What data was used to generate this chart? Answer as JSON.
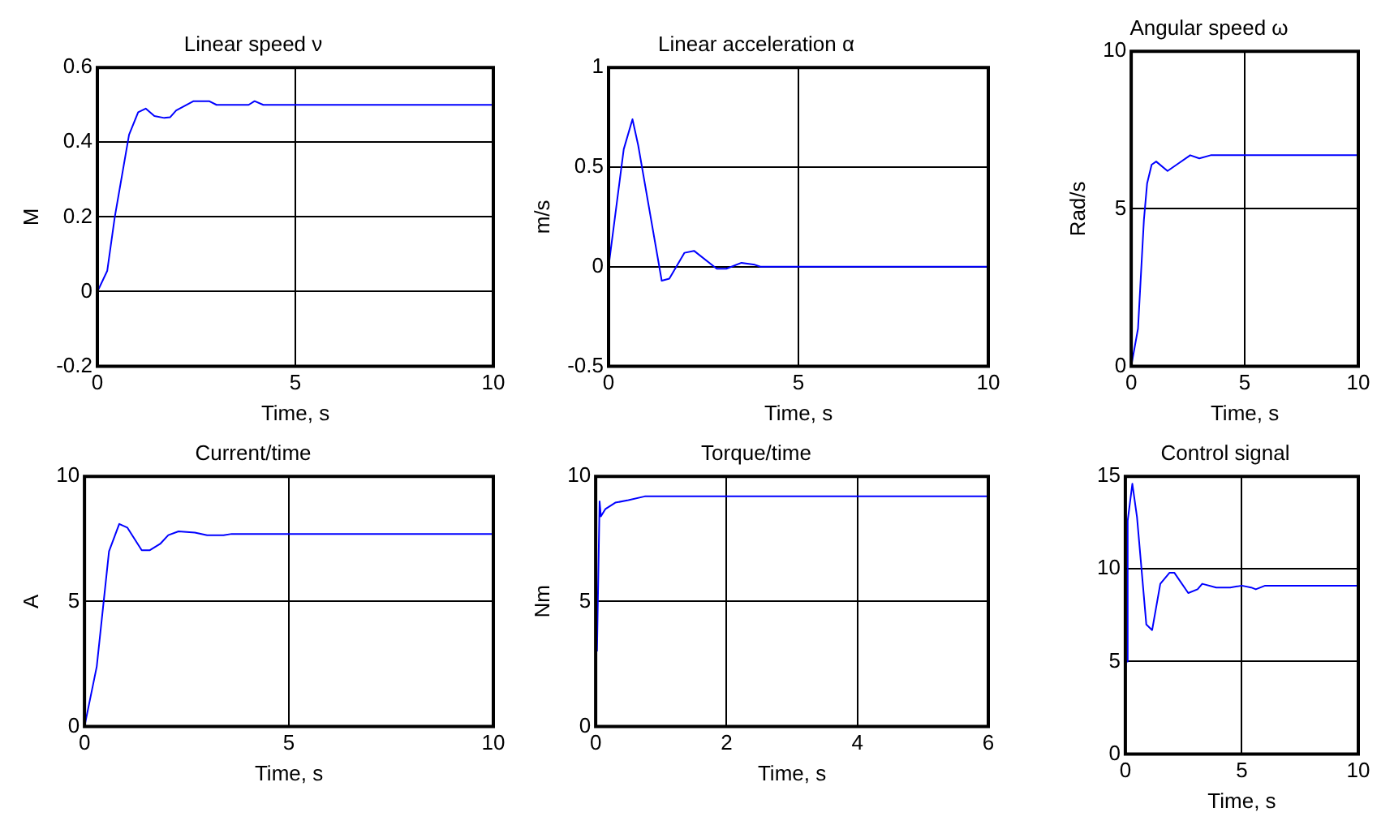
{
  "chart_data": [
    {
      "type": "line",
      "title": "Linear speed ν",
      "xlabel": "Time, s",
      "ylabel": "M",
      "color": "#0000ff",
      "grid": true,
      "xlim": [
        0,
        10
      ],
      "ylim": [
        -0.2,
        0.6
      ],
      "xticks": [
        0,
        5,
        10
      ],
      "yticks": [
        -0.2,
        0,
        0.2,
        0.4,
        0.6
      ],
      "x": [
        0,
        0.25,
        0.44,
        0.8,
        1.03,
        1.22,
        1.44,
        1.69,
        1.84,
        1.99,
        2.43,
        2.82,
        3.01,
        3.82,
        3.97,
        4.19,
        10
      ],
      "values": [
        0,
        0.056,
        0.2,
        0.42,
        0.48,
        0.49,
        0.47,
        0.465,
        0.467,
        0.485,
        0.51,
        0.51,
        0.5,
        0.5,
        0.51,
        0.5,
        0.5
      ]
    },
    {
      "type": "line",
      "title": "Linear acceleration α",
      "xlabel": "Time, s",
      "ylabel": "m/s",
      "color": "#0000ff",
      "grid": true,
      "xlim": [
        0,
        10
      ],
      "ylim": [
        -0.5,
        1
      ],
      "xticks": [
        0,
        5,
        10
      ],
      "yticks": [
        -0.5,
        0,
        0.5,
        1
      ],
      "x": [
        0,
        0.4,
        0.63,
        0.78,
        1.4,
        1.6,
        2.0,
        2.25,
        2.85,
        3.1,
        3.5,
        3.85,
        4.0,
        10
      ],
      "values": [
        0,
        0.59,
        0.74,
        0.61,
        -0.07,
        -0.06,
        0.07,
        0.08,
        -0.01,
        -0.01,
        0.02,
        0.01,
        0,
        0
      ]
    },
    {
      "type": "line",
      "title": "Angular speed ω",
      "xlabel": "Time, s",
      "ylabel": "Rad/s",
      "color": "#0000ff",
      "grid": true,
      "xlim": [
        0,
        10
      ],
      "ylim": [
        0,
        10
      ],
      "xticks": [
        0,
        5,
        10
      ],
      "yticks": [
        0,
        5,
        10
      ],
      "x": [
        0,
        0.3,
        0.56,
        0.7,
        0.9,
        1.1,
        1.6,
        2.0,
        2.6,
        3.0,
        3.5,
        10
      ],
      "values": [
        0,
        1.2,
        4.65,
        5.8,
        6.4,
        6.5,
        6.2,
        6.4,
        6.7,
        6.6,
        6.7,
        6.7
      ]
    },
    {
      "type": "line",
      "title": "Current/time",
      "xlabel": "Time, s",
      "ylabel": "A",
      "color": "#0000ff",
      "grid": true,
      "xlim": [
        0,
        10
      ],
      "ylim": [
        0,
        10
      ],
      "xticks": [
        0,
        5,
        10
      ],
      "yticks": [
        0,
        5,
        10
      ],
      "x": [
        0,
        0.3,
        0.6,
        0.85,
        1.05,
        1.4,
        1.6,
        1.85,
        2.05,
        2.3,
        2.7,
        3.0,
        3.4,
        3.6,
        10
      ],
      "values": [
        0,
        2.4,
        7.0,
        8.1,
        7.95,
        7.05,
        7.05,
        7.3,
        7.65,
        7.8,
        7.75,
        7.65,
        7.65,
        7.7,
        7.7
      ]
    },
    {
      "type": "line",
      "title": "Torque/time",
      "xlabel": "Time, s",
      "ylabel": "Nm",
      "color": "#0000ff",
      "grid": true,
      "xlim": [
        0,
        6
      ],
      "ylim": [
        0,
        10
      ],
      "xticks": [
        0,
        2,
        4,
        6
      ],
      "yticks": [
        0,
        5,
        10
      ],
      "x": [
        0.02,
        0.06,
        0.08,
        0.15,
        0.3,
        0.5,
        0.75,
        6
      ],
      "values": [
        3,
        9.0,
        8.4,
        8.7,
        8.95,
        9.05,
        9.2,
        9.2
      ]
    },
    {
      "type": "line",
      "title": "Control signal",
      "xlabel": "Time, s",
      "color": "#0000ff",
      "grid": true,
      "xlim": [
        0,
        10
      ],
      "ylim": [
        0,
        15
      ],
      "xticks": [
        0,
        5,
        10
      ],
      "yticks": [
        0,
        5,
        10,
        15
      ],
      "x": [
        0.05,
        0.1,
        0.3,
        0.5,
        0.9,
        1.15,
        1.5,
        1.9,
        2.1,
        2.7,
        3.1,
        3.3,
        3.9,
        4.5,
        5.0,
        5.4,
        5.6,
        6.0,
        10
      ],
      "values": [
        5,
        12.6,
        14.6,
        12.8,
        7.0,
        6.7,
        9.2,
        9.8,
        9.8,
        8.7,
        8.9,
        9.2,
        9.0,
        9.0,
        9.1,
        9.0,
        8.9,
        9.1,
        9.1
      ]
    }
  ]
}
